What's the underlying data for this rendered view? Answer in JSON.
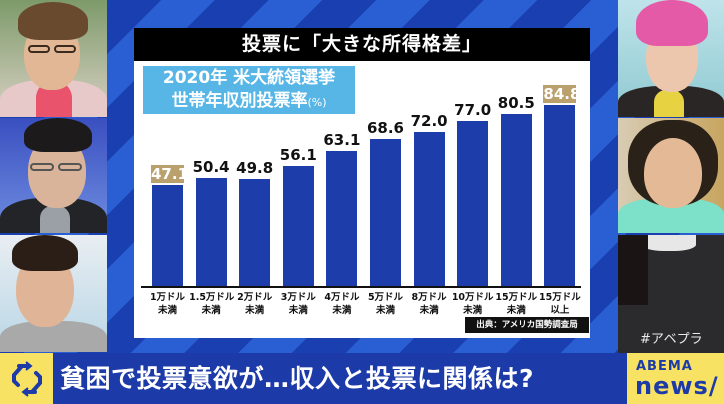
{
  "chart_panel": {
    "title": "投票に「大きな所得格差」",
    "subtitle_line1": "2020年 米大統領選挙",
    "subtitle_line2": "世帯年収別投票率",
    "subtitle_unit": "(%)",
    "source": "出典：アメリカ国勢調査局"
  },
  "chart_data": {
    "type": "bar",
    "title": "投票に「大きな所得格差」",
    "subtitle": "2020年 米大統領選挙 世帯年収別投票率(%)",
    "xlabel": "",
    "ylabel": "投票率(%)",
    "categories": [
      "1万ドル未満",
      "1.5万ドル未満",
      "2万ドル未満",
      "3万ドル未満",
      "4万ドル未満",
      "5万ドル未満",
      "8万ドル未満",
      "10万ドル未満",
      "15万ドル未満",
      "15万ドル以上"
    ],
    "category_lines": [
      [
        "1万ドル",
        "未満"
      ],
      [
        "1.5万ドル",
        "未満"
      ],
      [
        "2万ドル",
        "未満"
      ],
      [
        "3万ドル",
        "未満"
      ],
      [
        "4万ドル",
        "未満"
      ],
      [
        "5万ドル",
        "未満"
      ],
      [
        "8万ドル",
        "未満"
      ],
      [
        "10万ドル",
        "未満"
      ],
      [
        "15万ドル",
        "未満"
      ],
      [
        "15万ドル",
        "以上"
      ]
    ],
    "values": [
      47.1,
      50.4,
      49.8,
      56.1,
      63.1,
      68.6,
      72.0,
      77.0,
      80.5,
      84.8
    ],
    "value_labels": [
      "47.1",
      "50.4",
      "49.8",
      "56.1",
      "63.1",
      "68.6",
      "72.0",
      "77.0",
      "80.5",
      "84.8"
    ],
    "highlighted": [
      0,
      9
    ],
    "ylim": [
      0,
      100
    ],
    "grid": false,
    "legend": null,
    "source": "出典：アメリカ国勢調査局",
    "colors": {
      "bar": "#1c3daa",
      "highlight_label": "#b9a06d"
    }
  },
  "overlay": {
    "hashtag": "#アベプラ"
  },
  "ticker": {
    "icon": "refresh-arrows-icon",
    "headline": "貧困で投票意欲が…収入と投票に関係は?",
    "logo_top": "ABEMA",
    "logo_bottom": "news/"
  },
  "colors": {
    "background": "#1a3fb0",
    "ticker_bg": "#1c3aa8",
    "accent_yellow": "#f7e264",
    "subtitle_blue": "#58b6e6"
  }
}
